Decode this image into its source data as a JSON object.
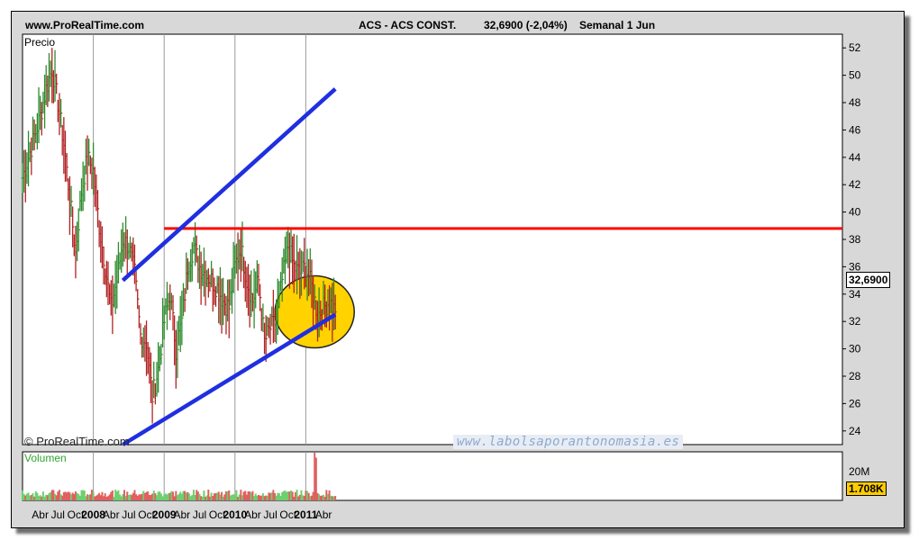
{
  "header": {
    "site": "www.ProRealTime.com",
    "instrument": "ACS - ACS CONST.",
    "quote": "32,6900 (-2,04%)",
    "period": "Semanal  1 Jun"
  },
  "footer": {
    "copyright": "© ProRealTime.com",
    "watermark": "www.labolsaporantonomasia.es"
  },
  "colors": {
    "up_bar": "#2e8b2e",
    "down_bar": "#b22222",
    "channel": "#1f2fe0",
    "resistance": "#ff0000",
    "highlight": "#ffd200",
    "volume": "#6fcf6f"
  },
  "chart_data": [
    {
      "type": "line",
      "title": "",
      "panel_label": "Precio",
      "ylim": [
        23,
        53
      ],
      "y_ticks": [
        24,
        26,
        28,
        30,
        32,
        34,
        36,
        38,
        40,
        42,
        44,
        46,
        48,
        50,
        52
      ],
      "x_ticks": [
        "Abr",
        "Jul",
        "Oct",
        "2008",
        "Abr",
        "Jul",
        "Oct",
        "2009",
        "Abr",
        "Jul",
        "Oct",
        "2010",
        "Abr",
        "Jul",
        "Oct",
        "2011",
        "Abr"
      ],
      "last_price_label": "32,6900",
      "series": [
        {
          "x": [
            "2007-01",
            "2007-02",
            "2007-03",
            "2007-04",
            "2007-05",
            "2007-06",
            "2007-07",
            "2007-08",
            "2007-09",
            "2007-10",
            "2007-11",
            "2007-12",
            "2008-01",
            "2008-02",
            "2008-03",
            "2008-04",
            "2008-05",
            "2008-06",
            "2008-07",
            "2008-08",
            "2008-09",
            "2008-10",
            "2008-11",
            "2008-12",
            "2009-01",
            "2009-02",
            "2009-03",
            "2009-04",
            "2009-05",
            "2009-06",
            "2009-07",
            "2009-08",
            "2009-09",
            "2009-10",
            "2009-11",
            "2009-12",
            "2010-01",
            "2010-02",
            "2010-03",
            "2010-04",
            "2010-05",
            "2010-06",
            "2010-07",
            "2010-08",
            "2010-09",
            "2010-10",
            "2010-11",
            "2010-12",
            "2011-01",
            "2011-02",
            "2011-03",
            "2011-04",
            "2011-05",
            "2011-06"
          ],
          "values": [
            42.5,
            44,
            45.5,
            47,
            49,
            50.5,
            48,
            45,
            41,
            37,
            41.5,
            44,
            43,
            39,
            36,
            33,
            35,
            38,
            37.5,
            35.5,
            31,
            30.5,
            26.5,
            28.5,
            32,
            34,
            30,
            32,
            36,
            37.5,
            36,
            35.5,
            35,
            34.5,
            33.5,
            33,
            36,
            37.5,
            35,
            33.5,
            35,
            30.5,
            31.5,
            32,
            35,
            37.5,
            36,
            35.5,
            36,
            34.5,
            32.5,
            33,
            33.5,
            32.69
          ]
        }
      ],
      "channel_lines": [
        {
          "name": "upper",
          "from": [
            "2008-06",
            35
          ],
          "to": [
            "2011-06",
            49
          ]
        },
        {
          "name": "lower",
          "from": [
            "2008-06",
            23
          ],
          "to": [
            "2011-06",
            32.5
          ]
        }
      ],
      "resistance": {
        "value": 38.8,
        "from": "2009-01",
        "to": "2011-06"
      }
    },
    {
      "type": "bar",
      "title": "",
      "panel_label": "Volumen",
      "y_ticks_label": "20M",
      "last_value_label": "1.708K"
    }
  ]
}
